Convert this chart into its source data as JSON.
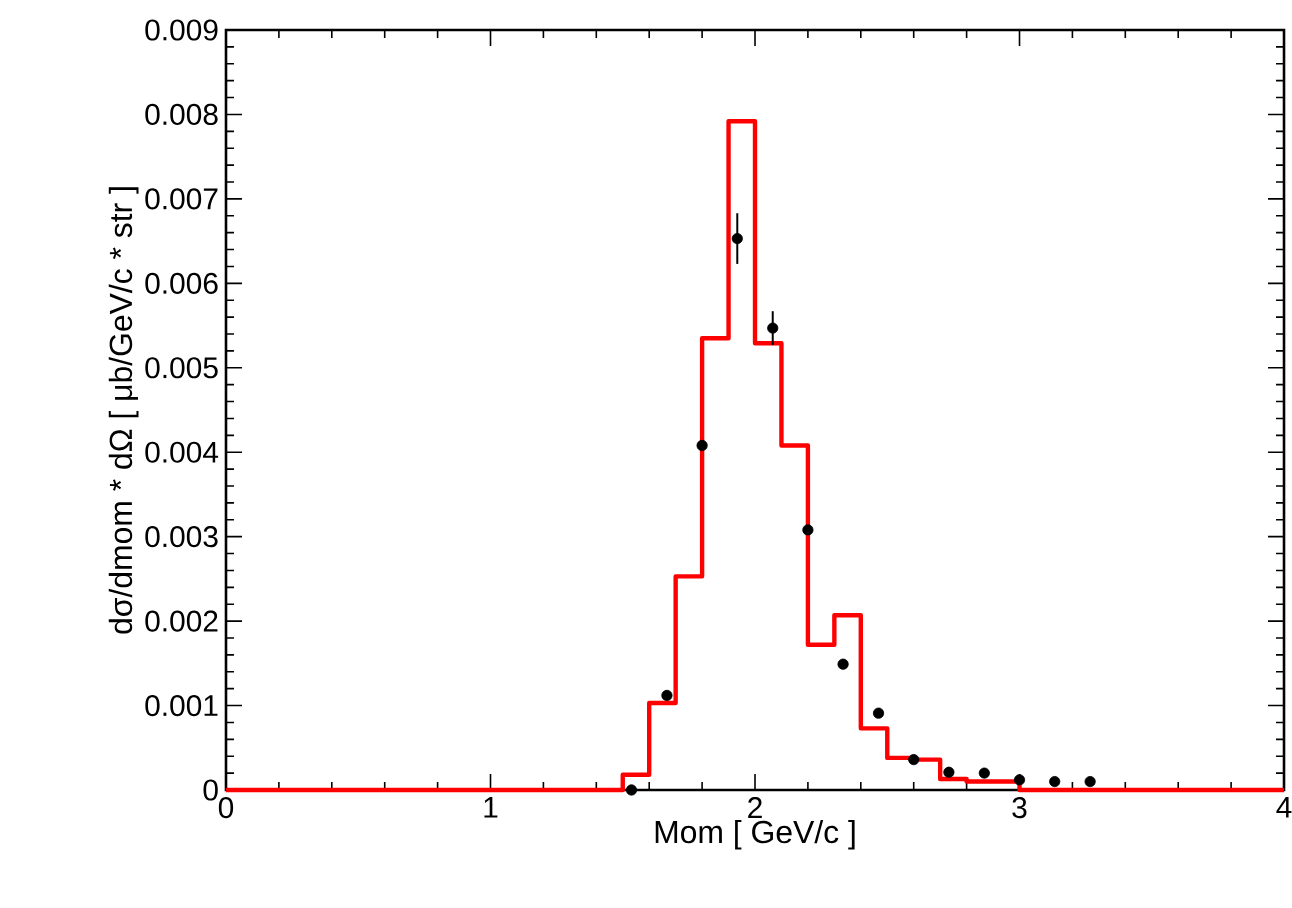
{
  "chart_data": {
    "type": "histogram",
    "xlabel": "Mom [ GeV/c ]",
    "ylabel": "dσ/dmom * dΩ [ μb/GeV/c * str ]",
    "xlim": [
      0,
      4
    ],
    "ylim": [
      0,
      0.009
    ],
    "xticks": [
      0,
      1,
      2,
      3,
      4
    ],
    "yticks": [
      0,
      0.001,
      0.002,
      0.003,
      0.004,
      0.005,
      0.006,
      0.007,
      0.008,
      0.009
    ],
    "series": [
      {
        "color": "#ff0000",
        "bins": [
          0,
          0.1,
          0.2,
          0.3,
          0.4,
          0.5,
          0.6,
          0.7,
          0.8,
          0.9,
          1.0,
          1.1,
          1.2,
          1.3,
          1.4,
          1.5,
          1.6,
          1.7,
          1.8,
          1.9,
          2.0,
          2.1,
          2.2,
          2.3,
          2.4,
          2.5,
          2.6,
          2.7,
          2.8,
          2.9,
          3.0,
          3.1,
          3.2,
          3.3,
          3.4,
          3.5,
          3.6,
          3.7,
          3.8,
          3.9,
          4.0
        ],
        "values": [
          0,
          0,
          0,
          0,
          0,
          0,
          0,
          0,
          0,
          0,
          0,
          0,
          0,
          0,
          0,
          0.00018,
          0.00103,
          0.00253,
          0.00535,
          0.00792,
          0.00529,
          0.00408,
          0.00172,
          0.00207,
          0.00073,
          0.00038,
          0.00036,
          0.00013,
          0.0001,
          0.0001,
          0,
          0,
          0,
          0,
          0,
          0,
          0,
          0,
          0,
          0
        ]
      },
      {
        "type": "scatter",
        "color": "#000000",
        "x": [
          1.533,
          1.667,
          1.8,
          1.933,
          2.067,
          2.2,
          2.333,
          2.467,
          2.6,
          2.733,
          2.867,
          3.0,
          3.133,
          3.267
        ],
        "values": [
          0,
          0.00112,
          0.00408,
          0.00653,
          0.00547,
          0.00308,
          0.00149,
          0.00091,
          0.00036,
          0.00021,
          0.0002,
          0.00012,
          0.0001,
          0.0001
        ],
        "errors": [
          null,
          null,
          null,
          0.0003,
          0.0002,
          null,
          null,
          null,
          null,
          null,
          null,
          null,
          null,
          null
        ]
      }
    ]
  }
}
